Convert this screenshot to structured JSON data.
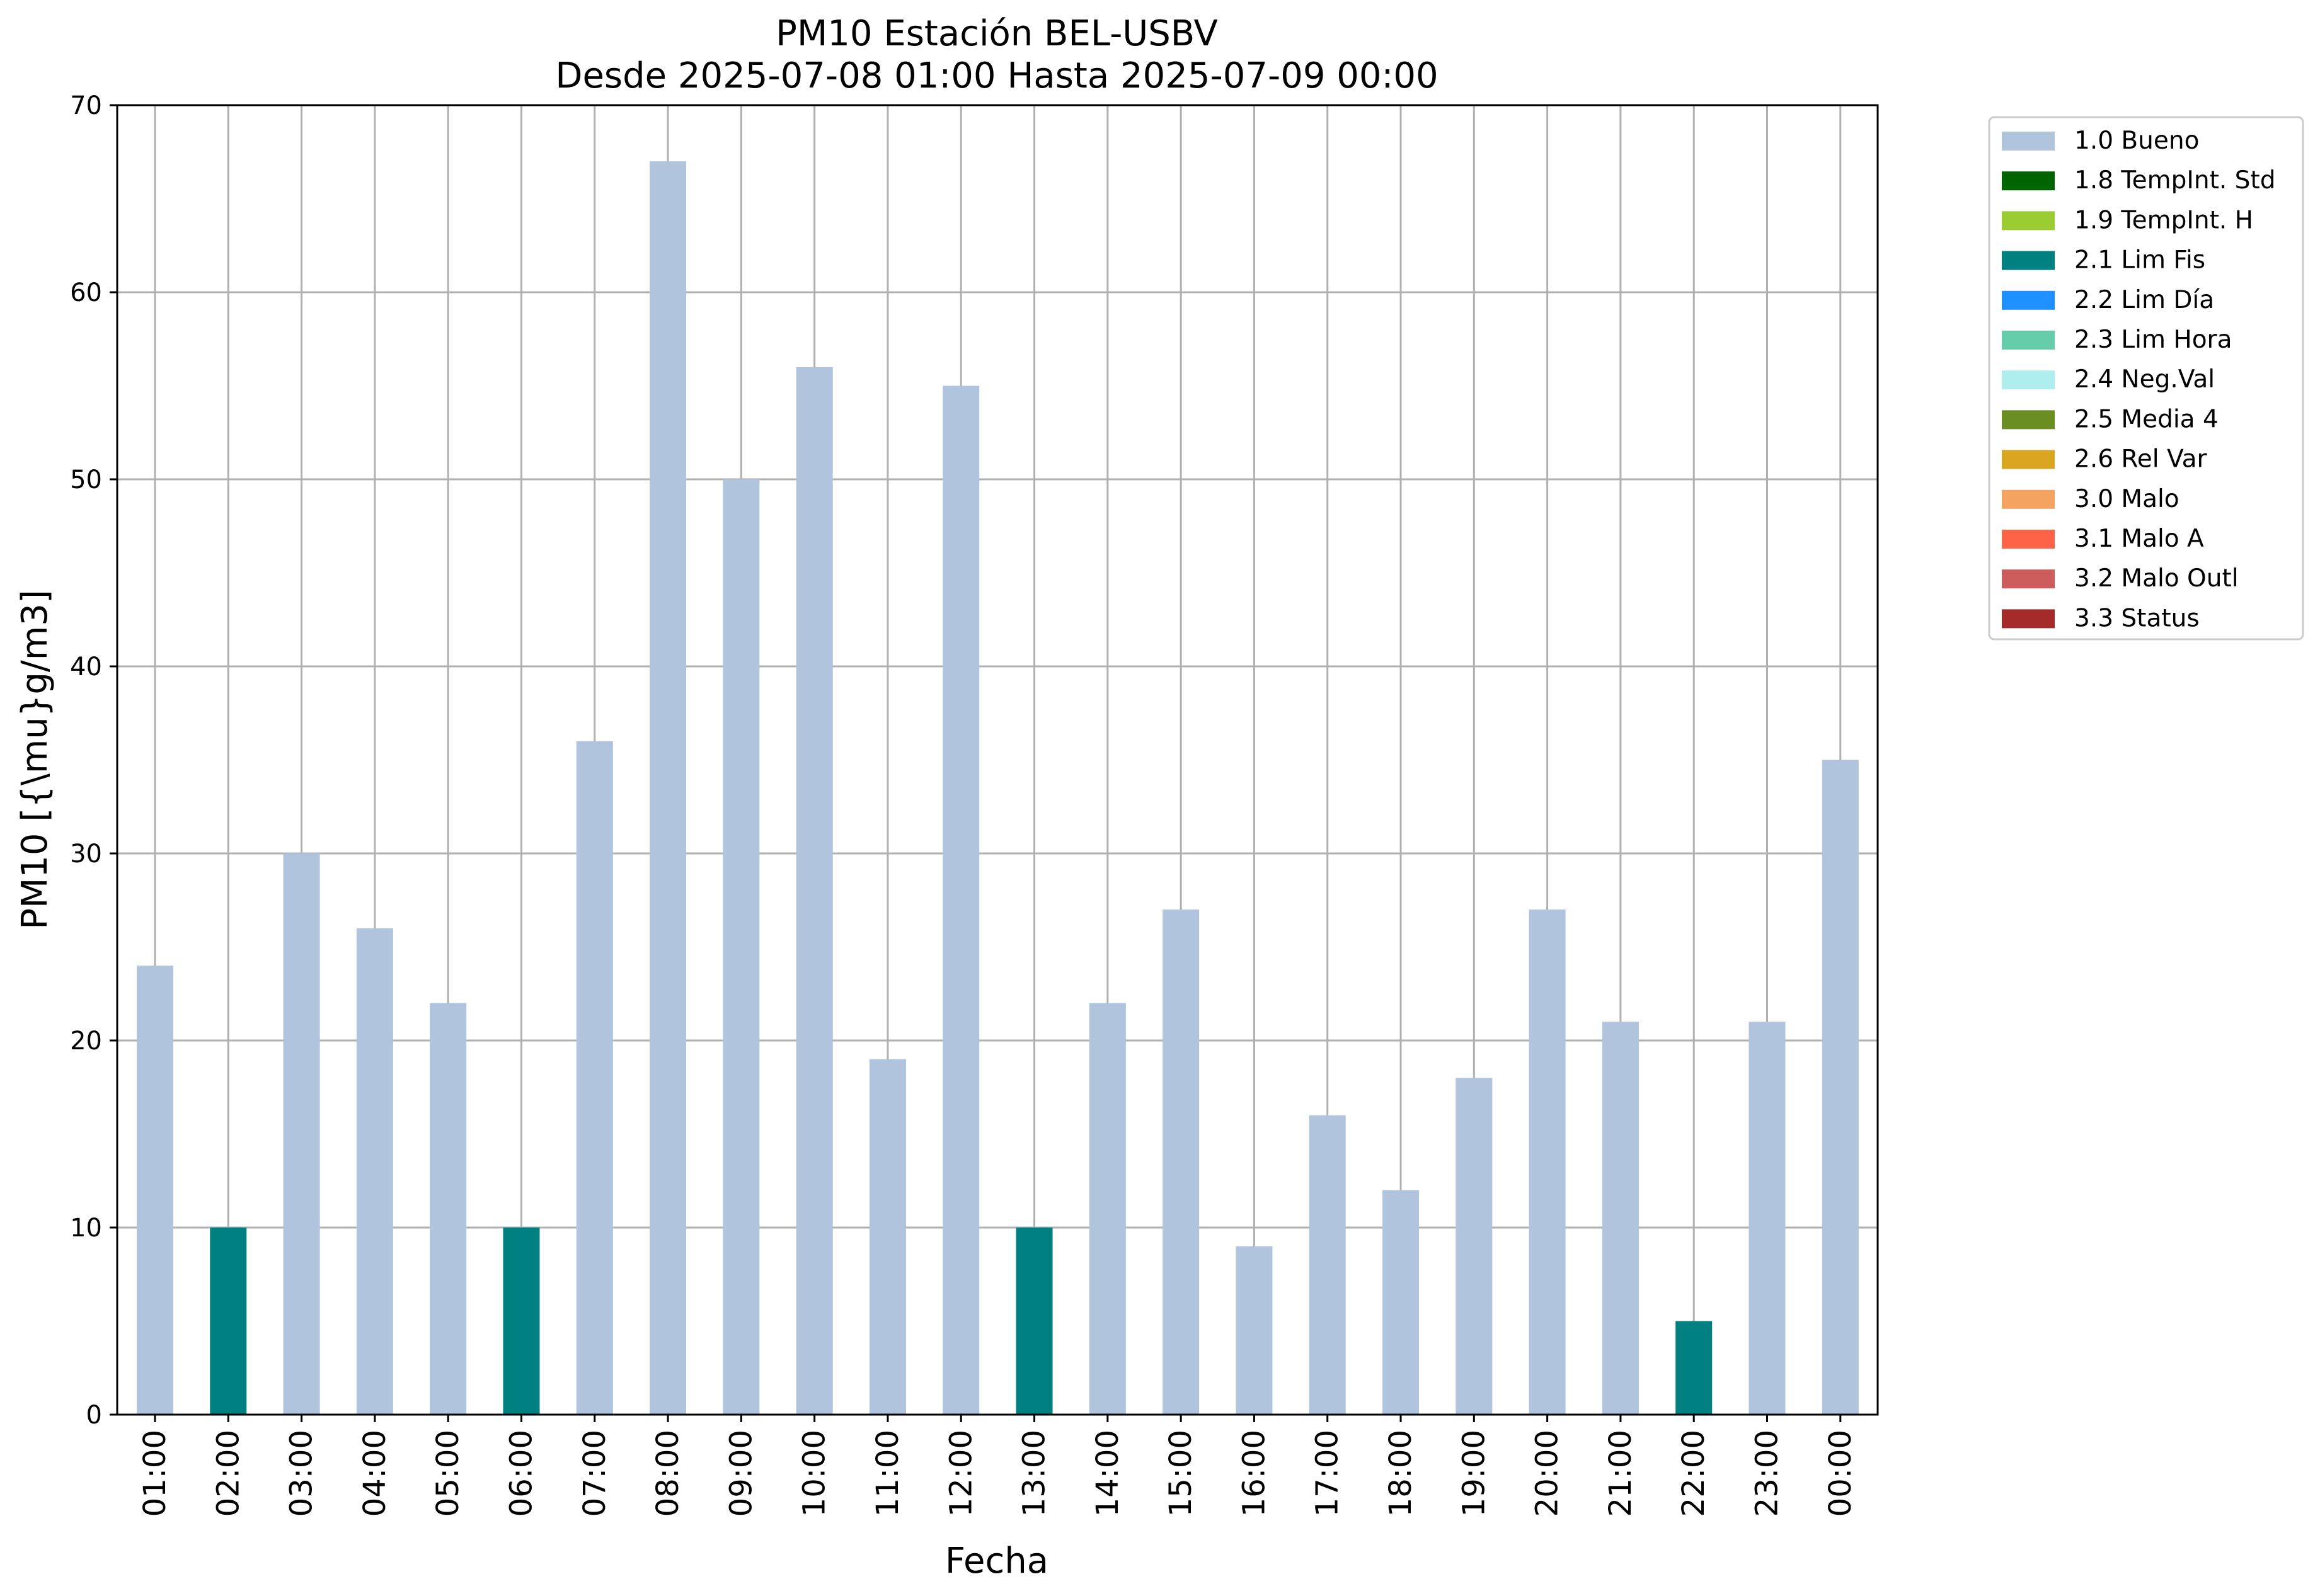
{
  "chart_data": {
    "type": "bar",
    "title": "PM10 Estación BEL-USBV",
    "subtitle": "Desde 2025-07-08 01:00 Hasta 2025-07-09 00:00",
    "xlabel": "Fecha",
    "ylabel": "PM10 [{\\mu}g/m3]",
    "ylim": [
      0,
      70
    ],
    "yticks": [
      0,
      10,
      20,
      30,
      40,
      50,
      60,
      70
    ],
    "grid": true,
    "legend_position": "outside-top-right",
    "categories": [
      "01:00",
      "02:00",
      "03:00",
      "04:00",
      "05:00",
      "06:00",
      "07:00",
      "08:00",
      "09:00",
      "10:00",
      "11:00",
      "12:00",
      "13:00",
      "14:00",
      "15:00",
      "16:00",
      "17:00",
      "18:00",
      "19:00",
      "20:00",
      "21:00",
      "22:00",
      "23:00",
      "00:00"
    ],
    "values": [
      24,
      10,
      30,
      26,
      22,
      10,
      36,
      67,
      50,
      56,
      19,
      55,
      10,
      22,
      27,
      9,
      16,
      12,
      18,
      27,
      21,
      5,
      21,
      35
    ],
    "flags": [
      "1.0 Bueno",
      "2.1 Lim Fis",
      "1.0 Bueno",
      "1.0 Bueno",
      "1.0 Bueno",
      "2.1 Lim Fis",
      "1.0 Bueno",
      "1.0 Bueno",
      "1.0 Bueno",
      "1.0 Bueno",
      "1.0 Bueno",
      "1.0 Bueno",
      "2.1 Lim Fis",
      "1.0 Bueno",
      "1.0 Bueno",
      "1.0 Bueno",
      "1.0 Bueno",
      "1.0 Bueno",
      "1.0 Bueno",
      "1.0 Bueno",
      "1.0 Bueno",
      "2.1 Lim Fis",
      "1.0 Bueno",
      "1.0 Bueno"
    ],
    "legend": [
      {
        "label": "1.0 Bueno",
        "color": "#b0c4de"
      },
      {
        "label": "1.8 TempInt. Std",
        "color": "#006400"
      },
      {
        "label": "1.9 TempInt. H",
        "color": "#9acd32"
      },
      {
        "label": "2.1 Lim Fis",
        "color": "#008080"
      },
      {
        "label": "2.2 Lim Día",
        "color": "#1e90ff"
      },
      {
        "label": "2.3 Lim Hora",
        "color": "#66cdaa"
      },
      {
        "label": "2.4 Neg.Val",
        "color": "#afeeee"
      },
      {
        "label": "2.5 Media 4",
        "color": "#6b8e23"
      },
      {
        "label": "2.6 Rel Var",
        "color": "#daa520"
      },
      {
        "label": "3.0 Malo",
        "color": "#f4a460"
      },
      {
        "label": "3.1 Malo A",
        "color": "#ff6347"
      },
      {
        "label": "3.2 Malo Outl",
        "color": "#cd5c5c"
      },
      {
        "label": "3.3 Status",
        "color": "#a52a2a"
      }
    ]
  }
}
